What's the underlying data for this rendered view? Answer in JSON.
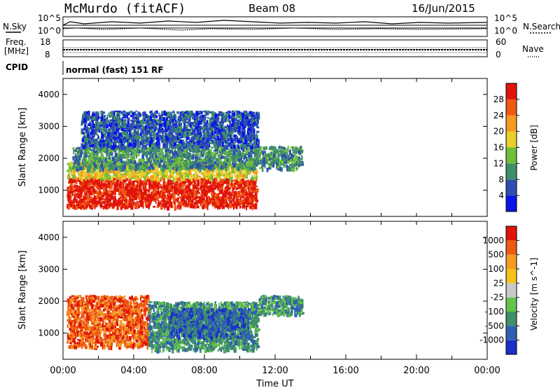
{
  "header": {
    "site": "McMurdo (fitACF)",
    "beam": "Beam 08",
    "date": "16/Jun/2015"
  },
  "status_panel": {
    "left_top_label": "N.Sky",
    "right_top_label": "N.Search",
    "left_top_ticks": [
      "10^5",
      "10^0"
    ],
    "right_top_ticks": [
      "10^5",
      "10^0"
    ],
    "freq_label_1": "Freq.",
    "freq_label_2": "[MHz]",
    "freq_ticks": [
      "18",
      "8"
    ],
    "nave_label": "Nave",
    "nave_ticks": [
      "60",
      "0"
    ],
    "cpid_label": "CPID",
    "cpid_value": "normal (fast) 151 RF"
  },
  "chart_data": [
    {
      "type": "heatmap",
      "title": "",
      "xlabel": "",
      "ylabel": "Slant Range [km]",
      "xlim": [
        0,
        24
      ],
      "ylim": [
        180,
        4500
      ],
      "yticks": [
        "1000",
        "2000",
        "3000",
        "4000"
      ],
      "colorbar": {
        "label": "Power [dB]",
        "ticks": [
          "4",
          "8",
          "12",
          "16",
          "20",
          "24",
          "28"
        ],
        "colors": [
          "#0a14e6",
          "#2f4fb0",
          "#3f8f6a",
          "#6fbf3a",
          "#e9cf2a",
          "#f49a20",
          "#ef5a12",
          "#e0140a"
        ]
      },
      "regions": [
        {
          "t0": 0.2,
          "t1": 10.9,
          "r0": 500,
          "r1": 1400,
          "level": 7
        },
        {
          "t0": 0.2,
          "t1": 10.9,
          "r0": 1400,
          "r1": 1900,
          "level": 4
        },
        {
          "t0": 0.5,
          "t1": 13.5,
          "r0": 1700,
          "r1": 2400,
          "level": 2
        },
        {
          "t0": 1.0,
          "t1": 11.0,
          "r0": 2400,
          "r1": 3500,
          "level": 1
        }
      ]
    },
    {
      "type": "heatmap",
      "title": "",
      "xlabel": "Time UT",
      "ylabel": "Slant Range [km]",
      "xlim": [
        0,
        24
      ],
      "ylim": [
        180,
        4500
      ],
      "xticks": [
        "00:00",
        "04:00",
        "08:00",
        "12:00",
        "16:00",
        "20:00",
        "00:00"
      ],
      "yticks": [
        "1000",
        "2000",
        "3000",
        "4000"
      ],
      "colorbar": {
        "label": "Velocity [m s^-1]",
        "ticks": [
          "1000",
          "500",
          "100",
          "25",
          "-25",
          "-100",
          "-500",
          "-1000"
        ],
        "colors": [
          "#1a2fc8",
          "#2f5fb0",
          "#3f8f6a",
          "#62c24a",
          "#c8c8c8",
          "#f4c21a",
          "#f49a20",
          "#ef5a12",
          "#e0140a"
        ]
      },
      "regions": [
        {
          "t0": 0.2,
          "t1": 4.8,
          "r0": 600,
          "r1": 2200,
          "level": 7
        },
        {
          "t0": 4.8,
          "t1": 11.0,
          "r0": 500,
          "r1": 2000,
          "level": 2
        },
        {
          "t0": 6.0,
          "t1": 10.5,
          "r0": 900,
          "r1": 1800,
          "level": 1
        },
        {
          "t0": 11.0,
          "t1": 13.5,
          "r0": 1600,
          "r1": 2200,
          "level": 2
        }
      ]
    }
  ]
}
